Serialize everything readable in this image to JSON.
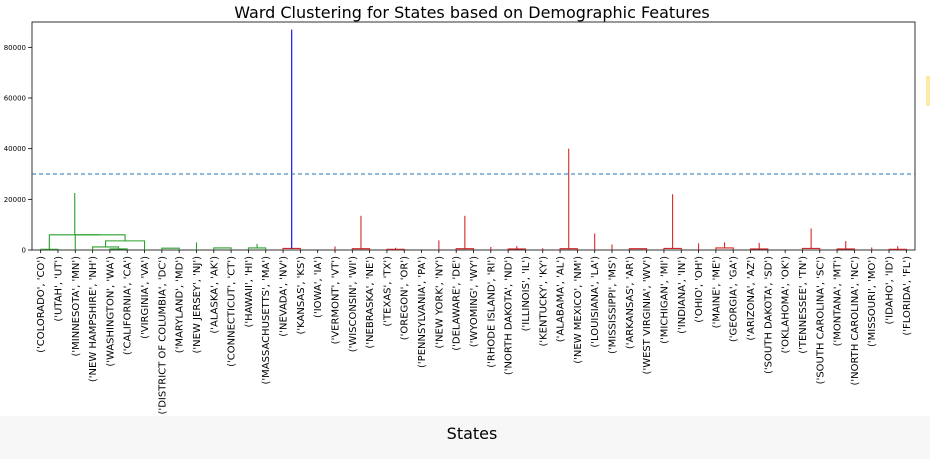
{
  "chart_data": {
    "type": "dendrogram",
    "title": "Ward Clustering for States based on Demographic Features",
    "xlabel": "States",
    "ylabel": "",
    "ylim": [
      0,
      90000
    ],
    "yticks": [
      0,
      20000,
      40000,
      60000,
      80000
    ],
    "cut_line": 30000,
    "colors": {
      "cluster_1": "#2ca02c",
      "cluster_2": "#d62728",
      "root": "#0000ee",
      "cut_line": "#1f77b4"
    },
    "leaves": [
      "('COLORADO', 'CO')",
      "('UTAH', 'UT')",
      "('MINNESOTA', 'MN')",
      "('NEW HAMPSHIRE', 'NH')",
      "('WASHINGTON', 'WA')",
      "('CALIFORNIA', 'CA')",
      "('VIRGINIA', 'VA')",
      "('DISTRICT OF COLUMBIA', 'DC')",
      "('MARYLAND', 'MD')",
      "('NEW JERSEY', 'NJ')",
      "('ALASKA', 'AK')",
      "('CONNECTICUT', 'CT')",
      "('HAWAII', 'HI')",
      "('MASSACHUSETTS', 'MA')",
      "('NEVADA', 'NV')",
      "('KANSAS', 'KS')",
      "('IOWA', 'IA')",
      "('VERMONT', 'VT')",
      "('WISCONSIN', 'WI')",
      "('NEBRASKA', 'NE')",
      "('TEXAS', 'TX')",
      "('OREGON', 'OR')",
      "('PENNSYLVANIA', 'PA')",
      "('NEW YORK', 'NY')",
      "('DELAWARE', 'DE')",
      "('WYOMING', 'WY')",
      "('RHODE ISLAND', 'RI')",
      "('NORTH DAKOTA', 'ND')",
      "('ILLINOIS', 'IL')",
      "('KENTUCKY', 'KY')",
      "('ALABAMA', 'AL')",
      "('NEW MEXICO', 'NM')",
      "('LOUISIANA', 'LA')",
      "('MISSISSIPPI', 'MS')",
      "('ARKANSAS', 'AR')",
      "('WEST VIRGINIA', 'WV')",
      "('MICHIGAN', 'MI')",
      "('INDIANA', 'IN')",
      "('OHIO', 'OH')",
      "('MAINE', 'ME')",
      "('GEORGIA', 'GA')",
      "('ARIZONA', 'AZ')",
      "('SOUTH DAKOTA', 'SD')",
      "('OKLAHOMA', 'OK')",
      "('TENNESSEE', 'TN')",
      "('SOUTH CAROLINA', 'SC')",
      "('MONTANA', 'MT')",
      "('NORTH CAROLINA', 'NC')",
      "('MISSOURI', 'MO')",
      "('IDAHO', 'ID')",
      "('FLORIDA', 'FL')"
    ],
    "links": [
      {
        "l": 0,
        "r": 1,
        "h": 300,
        "c": "cluster_1"
      },
      {
        "l": 4,
        "r": 5,
        "h": 400,
        "c": "cluster_1"
      },
      {
        "l": 3,
        "r": "n2",
        "h": 1200,
        "c": "cluster_1"
      },
      {
        "l": "n3",
        "r": 6,
        "h": 3600,
        "c": "cluster_1"
      },
      {
        "l": 2,
        "r": "n4",
        "h": 6000,
        "c": "cluster_1"
      },
      {
        "l": "n1",
        "r": "n5",
        "h": 6000,
        "c": "cluster_1"
      },
      {
        "l": 10,
        "r": 11,
        "h": 800,
        "c": "cluster_1"
      },
      {
        "l": 12,
        "r": 13,
        "h": 800,
        "c": "cluster_1"
      },
      {
        "l": "n8",
        "r": "n9",
        "h": 2400,
        "c": "cluster_1"
      },
      {
        "l": 9,
        "r": "n10",
        "h": 3000,
        "c": "cluster_1"
      },
      {
        "l": 7,
        "r": 8,
        "h": 700,
        "c": "cluster_1"
      },
      {
        "l": "n12",
        "r": "n11",
        "h": 8000,
        "c": "cluster_1"
      },
      {
        "l": "n6",
        "r": "n13",
        "h": 22500,
        "c": "cluster_1"
      },
      {
        "l": 14,
        "r": 15,
        "h": 600,
        "c": "cluster_2"
      },
      {
        "l": "n15",
        "r": 16,
        "h": 3200,
        "c": "cluster_2"
      },
      {
        "l": 18,
        "r": 19,
        "h": 500,
        "c": "cluster_2"
      },
      {
        "l": 20,
        "r": 21,
        "h": 300,
        "c": "cluster_2"
      },
      {
        "l": "n18",
        "r": 22,
        "h": 600,
        "c": "cluster_2"
      },
      {
        "l": "n17",
        "r": "n19",
        "h": 900,
        "c": "cluster_2"
      },
      {
        "l": 17,
        "r": "n20",
        "h": 1400,
        "c": "cluster_2"
      },
      {
        "l": 24,
        "r": 25,
        "h": 500,
        "c": "cluster_2"
      },
      {
        "l": 27,
        "r": 28,
        "h": 400,
        "c": "cluster_2"
      },
      {
        "l": 26,
        "r": "n23",
        "h": 1200,
        "c": "cluster_2"
      },
      {
        "l": "n22",
        "r": "n24",
        "h": 1500,
        "c": "cluster_2"
      },
      {
        "l": 23,
        "r": "n25",
        "h": 3800,
        "c": "cluster_2"
      },
      {
        "l": "n21",
        "r": "n26",
        "h": 13500,
        "c": "cluster_2"
      },
      {
        "l": "n16",
        "r": "n27",
        "h": 13500,
        "c": "cluster_2"
      },
      {
        "l": 30,
        "r": 31,
        "h": 500,
        "c": "cluster_2"
      },
      {
        "l": 29,
        "r": "n29",
        "h": 700,
        "c": "cluster_2"
      },
      {
        "l": 34,
        "r": 35,
        "h": 500,
        "c": "cluster_2"
      },
      {
        "l": 33,
        "r": "n31",
        "h": 2200,
        "c": "cluster_2"
      },
      {
        "l": 32,
        "r": "n32",
        "h": 6500,
        "c": "cluster_2"
      },
      {
        "l": 36,
        "r": 37,
        "h": 600,
        "c": "cluster_2"
      },
      {
        "l": 39,
        "r": 40,
        "h": 800,
        "c": "cluster_2"
      },
      {
        "l": 38,
        "r": "n35",
        "h": 2600,
        "c": "cluster_2"
      },
      {
        "l": "n34",
        "r": "n36",
        "h": 3000,
        "c": "cluster_2"
      },
      {
        "l": 41,
        "r": 42,
        "h": 400,
        "c": "cluster_2"
      },
      {
        "l": "n38",
        "r": 43,
        "h": 900,
        "c": "cluster_2"
      },
      {
        "l": "n37",
        "r": "n39",
        "h": 2800,
        "c": "cluster_2"
      },
      {
        "l": 44,
        "r": 45,
        "h": 600,
        "c": "cluster_2"
      },
      {
        "l": 46,
        "r": 47,
        "h": 400,
        "c": "cluster_2"
      },
      {
        "l": 49,
        "r": 50,
        "h": 300,
        "c": "cluster_2"
      },
      {
        "l": 48,
        "r": "n43",
        "h": 1000,
        "c": "cluster_2"
      },
      {
        "l": "n42",
        "r": "n44",
        "h": 1500,
        "c": "cluster_2"
      },
      {
        "l": "n41",
        "r": "n45",
        "h": 3500,
        "c": "cluster_2"
      },
      {
        "l": "n40",
        "r": "n46",
        "h": 8500,
        "c": "cluster_2"
      },
      {
        "l": "n33",
        "r": "n47",
        "h": 22000,
        "c": "cluster_2"
      },
      {
        "l": "n28",
        "r": "n48",
        "h": 40000,
        "c": "cluster_2"
      },
      {
        "l": "n14",
        "r": "n49",
        "h": 87000,
        "c": "root"
      }
    ]
  }
}
